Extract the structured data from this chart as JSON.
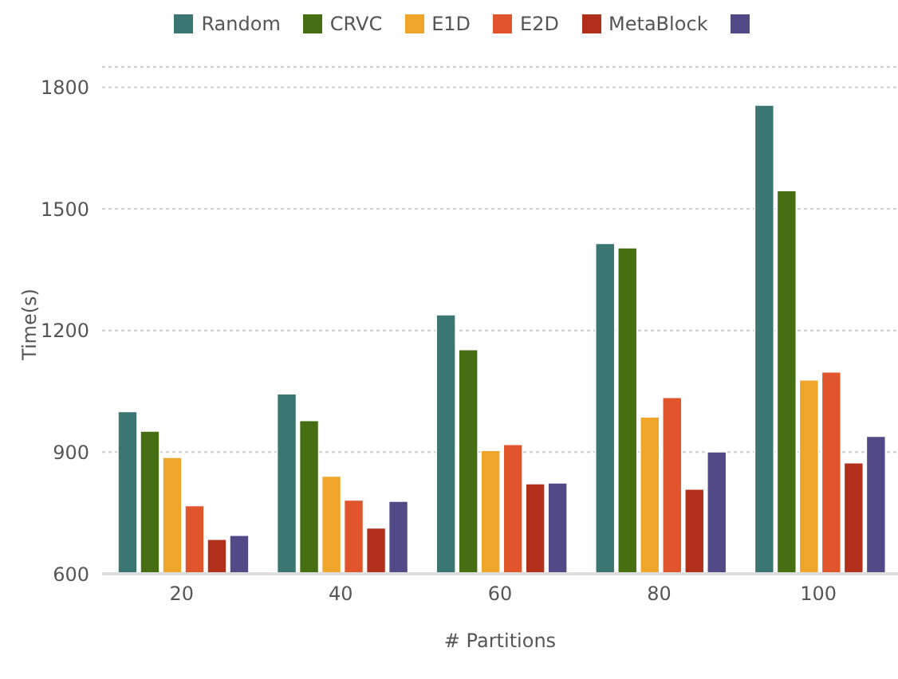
{
  "chart_data": {
    "type": "bar",
    "xlabel": "# Partitions",
    "ylabel": "Time(s)",
    "categories": [
      "20",
      "40",
      "60",
      "80",
      "100"
    ],
    "series": [
      {
        "name": "Random",
        "color": "#3b7673",
        "values": [
          1000,
          1044,
          1239,
          1415,
          1756
        ]
      },
      {
        "name": "CRVC",
        "color": "#466f14",
        "values": [
          952,
          978,
          1153,
          1404,
          1545
        ]
      },
      {
        "name": "E1D",
        "color": "#eea529",
        "values": [
          887,
          841,
          904,
          987,
          1078
        ]
      },
      {
        "name": "E2D",
        "color": "#e0552b",
        "values": [
          768,
          782,
          919,
          1035,
          1098
        ]
      },
      {
        "name": "MetaBlock",
        "color": "#b0301c",
        "values": [
          685,
          713,
          822,
          809,
          874
        ]
      },
      {
        "color": "#524a86",
        "values": [
          695,
          779,
          824,
          901,
          939
        ]
      }
    ],
    "ylim": [
      600,
      1850
    ],
    "yticks": [
      600,
      900,
      1200,
      1500,
      1800
    ],
    "grid": "y",
    "legend": "top"
  }
}
